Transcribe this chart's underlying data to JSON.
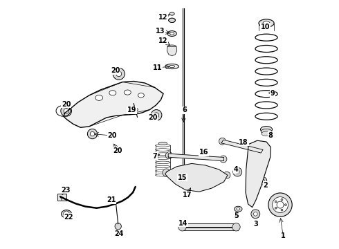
{
  "bg_color": "#ffffff",
  "line_color": "#000000",
  "title": "",
  "figsize": [
    4.9,
    3.6
  ],
  "dpi": 100,
  "font_size": 7,
  "label_font_weight": "bold"
}
